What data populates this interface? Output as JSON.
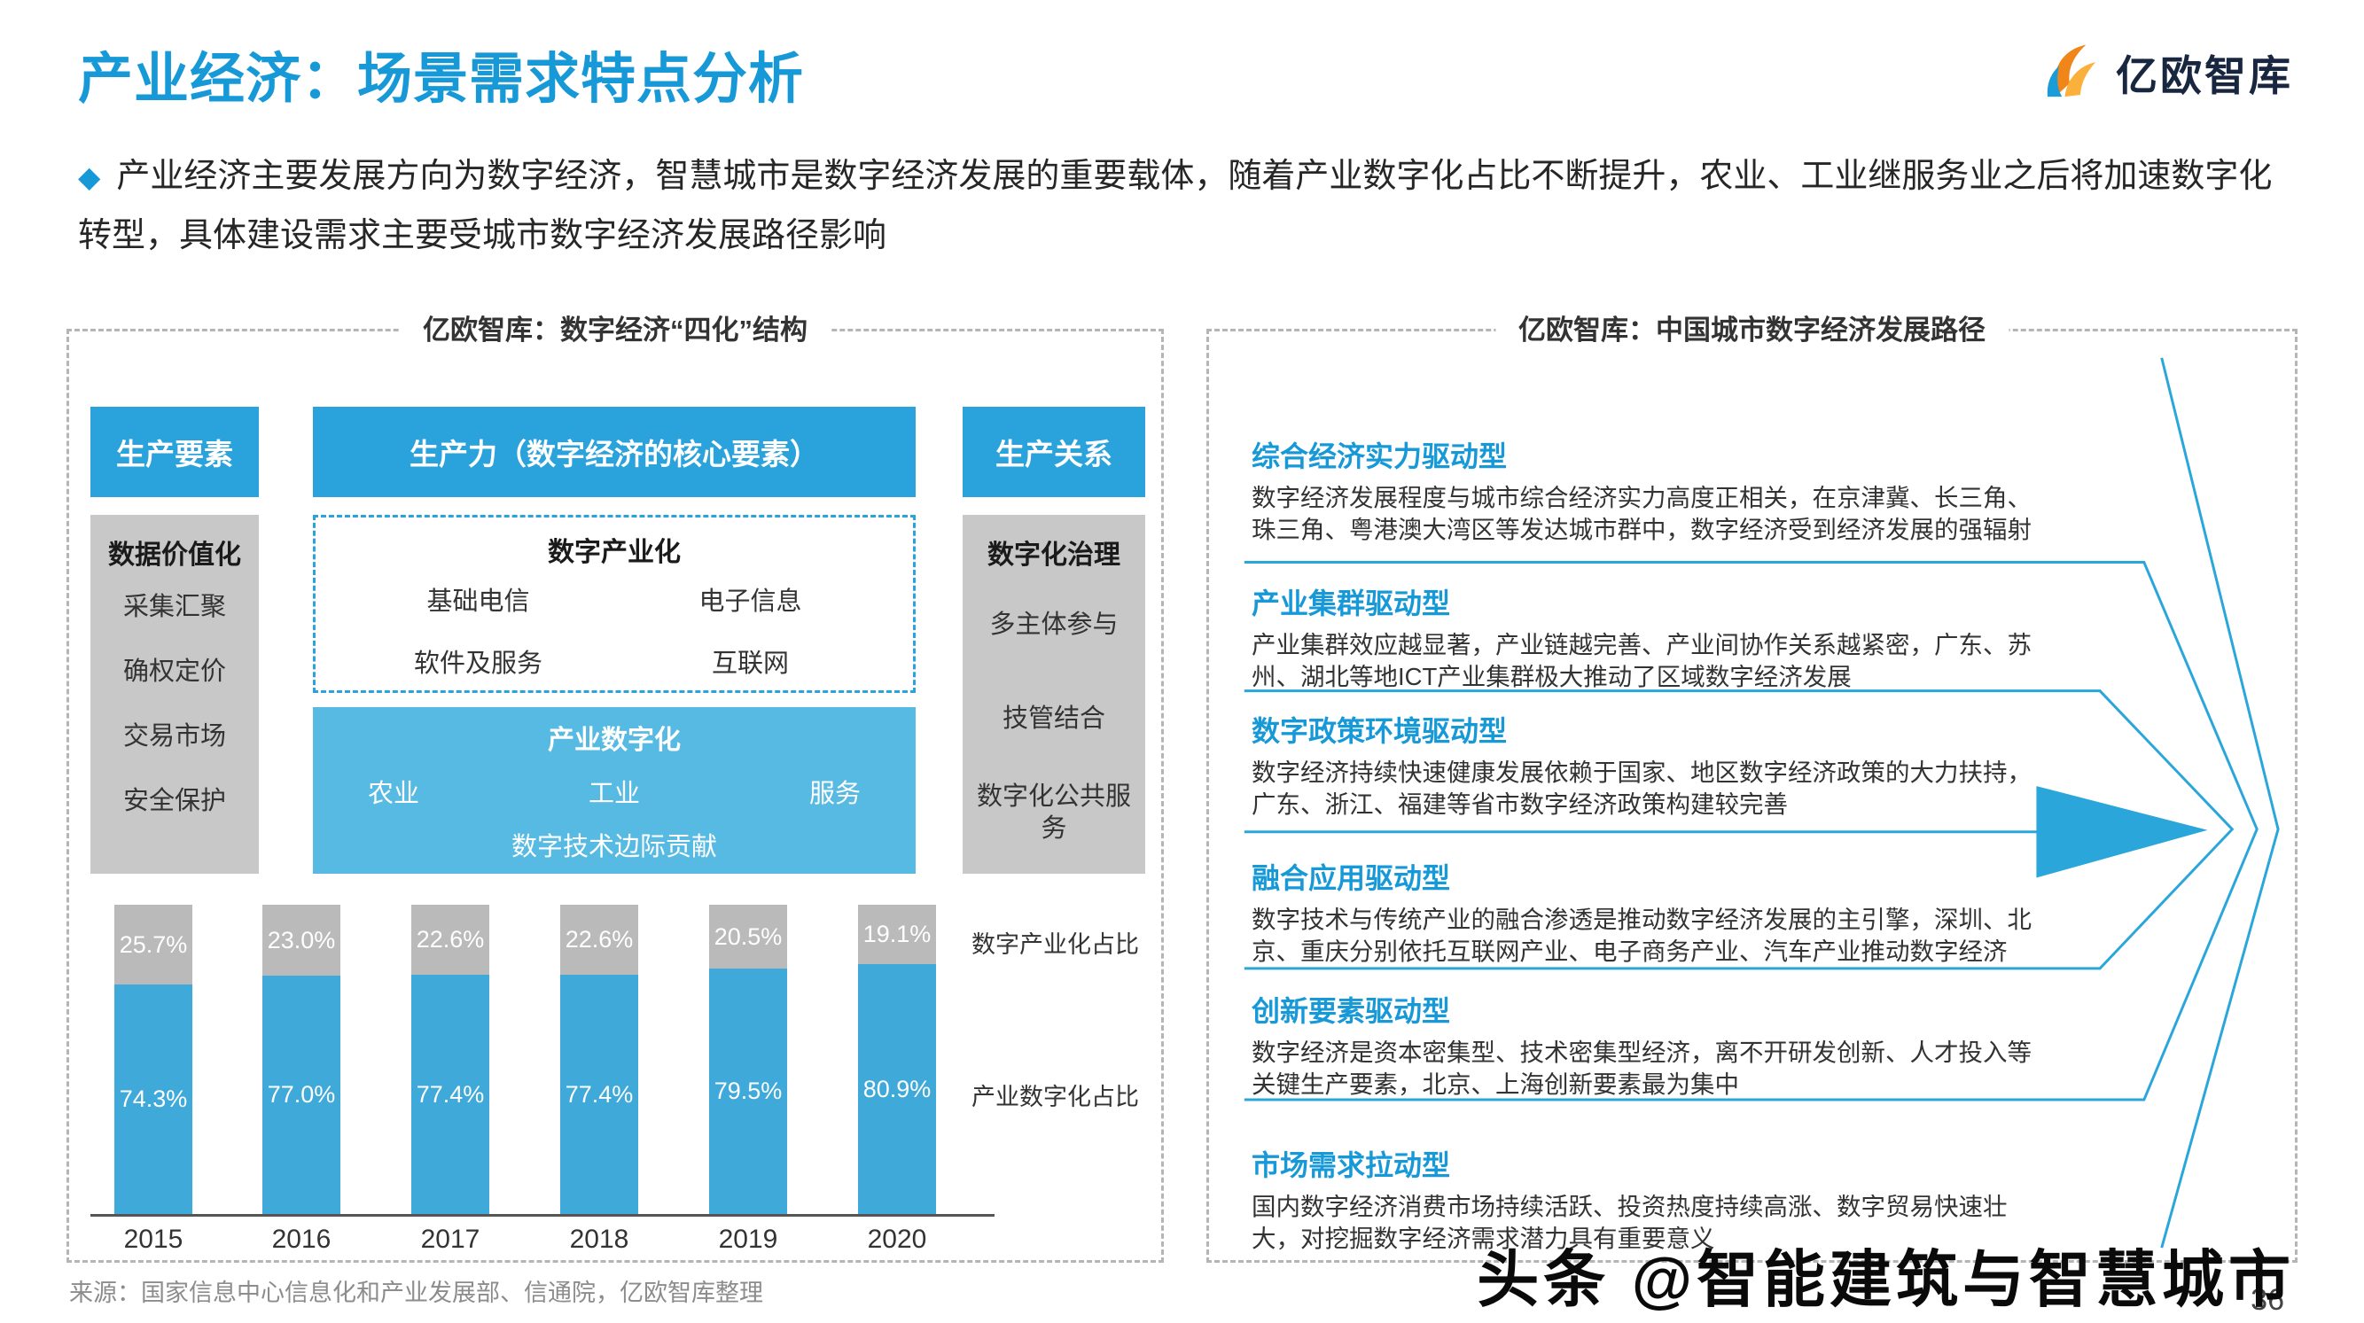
{
  "header": {
    "title": "产业经济：场景需求特点分析",
    "logo_text": "亿欧智库",
    "bullet": "◆",
    "intro": "产业经济主要发展方向为数字经济，智慧城市是数字经济发展的重要载体，随着产业数字化占比不断提升，农业、工业继服务业之后将加速数字化转型，具体建设需求主要受城市数字经济发展路径影响"
  },
  "left_panel": {
    "title": "亿欧智库：数字经济“四化”结构",
    "factors": {
      "header": "生产要素",
      "box_title": "数据价值化",
      "items": [
        "采集汇聚",
        "确权定价",
        "交易市场",
        "安全保护"
      ]
    },
    "productivity": {
      "header": "生产力（数字经济的核心要素）",
      "digital_box": {
        "title": "数字产业化",
        "items": [
          "基础电信",
          "电子信息",
          "软件及服务",
          "互联网"
        ]
      },
      "industry_box": {
        "title": "产业数字化",
        "items": [
          "农业",
          "工业",
          "服务"
        ],
        "footer": "数字技术边际贡献"
      }
    },
    "relations": {
      "header": "生产关系",
      "box_title": "数字化治理",
      "items": [
        "多主体参与",
        "技管结合",
        "数字化公共服务"
      ]
    }
  },
  "chart_data": {
    "type": "bar",
    "stacked": true,
    "categories": [
      "2015",
      "2016",
      "2017",
      "2018",
      "2019",
      "2020"
    ],
    "series": [
      {
        "name": "数字产业化占比",
        "color": "#BABABA",
        "values": [
          25.7,
          23.0,
          22.6,
          22.6,
          20.5,
          19.1
        ],
        "labels": [
          "25.7%",
          "23.0%",
          "22.6%",
          "22.6%",
          "20.5%",
          "19.1%"
        ]
      },
      {
        "name": "产业数字化占比",
        "color": "#3FA9DA",
        "values": [
          74.3,
          77.0,
          77.4,
          77.4,
          79.5,
          80.9
        ],
        "labels": [
          "74.3%",
          "77.0%",
          "77.4%",
          "77.4%",
          "79.5%",
          "80.9%"
        ]
      }
    ],
    "ylim": [
      0,
      100
    ],
    "unit": "%",
    "legend_position": "right",
    "grid": false
  },
  "right_panel": {
    "title": "亿欧智库：中国城市数字经济发展路径",
    "sections": [
      {
        "heading": "综合经济实力驱动型",
        "body": "数字经济发展程度与城市综合经济实力高度正相关，在京津冀、长三角、珠三角、粤港澳大湾区等发达城市群中，数字经济受到经济发展的强辐射"
      },
      {
        "heading": "产业集群驱动型",
        "body": "产业集群效应越显著，产业链越完善、产业间协作关系越紧密，广东、苏州、湖北等地ICT产业集群极大推动了区域数字经济发展"
      },
      {
        "heading": "数字政策环境驱动型",
        "body": "数字经济持续快速健康发展依赖于国家、地区数字经济政策的大力扶持，广东、浙江、福建等省市数字经济政策构建较完善"
      },
      {
        "heading": "融合应用驱动型",
        "body": "数字技术与传统产业的融合渗透是推动数字经济发展的主引擎，深圳、北京、重庆分别依托互联网产业、电子商务产业、汽车产业推动数字经济"
      },
      {
        "heading": "创新要素驱动型",
        "body": "数字经济是资本密集型、技术密集型经济，离不开研发创新、人才投入等关键生产要素，北京、上海创新要素最为集中"
      },
      {
        "heading": "市场需求拉动型",
        "body": "国内数字经济消费市场持续活跃、投资热度持续高涨、数字贸易快速壮大，对挖掘数字经济需求潜力具有重要意义"
      }
    ]
  },
  "footer": {
    "source": "来源：国家信息中心信息化和产业发展部、信通院，亿欧智库整理",
    "watermark": "头条 @智能建筑与智慧城市",
    "page_number": "36"
  },
  "colors": {
    "accent_blue": "#1799D8",
    "header_blue": "#2AA2DB",
    "light_blue": "#57BAE2",
    "box_gray": "#C8C8C8",
    "bar_gray": "#BABABA",
    "bar_blue": "#3FA9DA"
  }
}
